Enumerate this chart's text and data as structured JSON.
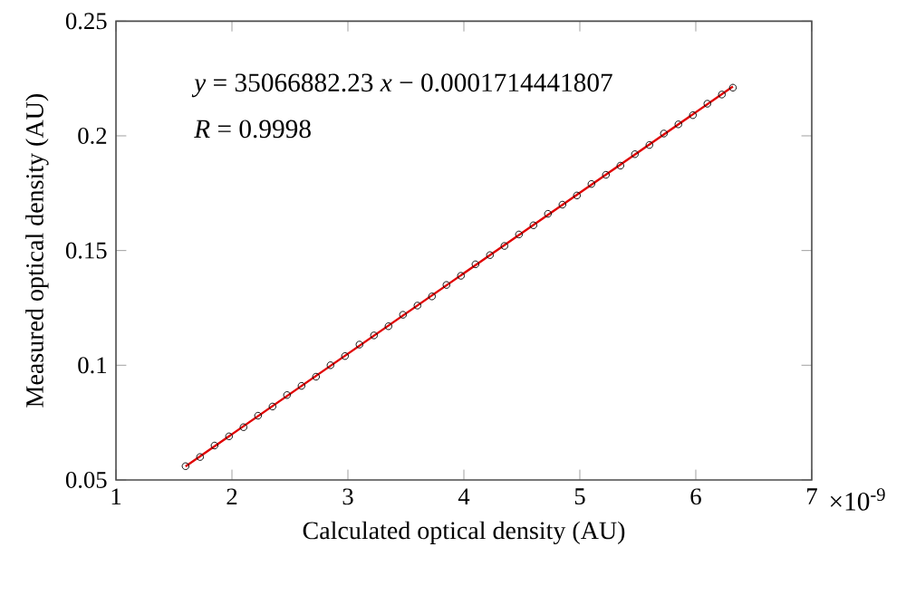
{
  "chart_data": {
    "type": "scatter",
    "xlabel": "Calculated optical density (AU)",
    "ylabel": "Measured optical density (AU)",
    "xlim": [
      1,
      7
    ],
    "ylim": [
      0.05,
      0.25
    ],
    "xticks": [
      1,
      2,
      3,
      4,
      5,
      6,
      7
    ],
    "yticks": [
      0.05,
      0.1,
      0.15,
      0.2,
      0.25
    ],
    "annotations": [
      "*y* = 35066882.23 *x* − 0.0001714441807",
      "*R* = 0.9998",
      "×10$^{-9}$"
    ],
    "series": [
      {
        "marker": "circle",
        "color": "#000000",
        "x": [
          1.6,
          1.725,
          1.85,
          1.975,
          2.1,
          2.225,
          2.35,
          2.475,
          2.6,
          2.725,
          2.85,
          2.975,
          3.1,
          3.225,
          3.35,
          3.475,
          3.6,
          3.725,
          3.85,
          3.975,
          4.1,
          4.225,
          4.35,
          4.475,
          4.6,
          4.725,
          4.85,
          4.975,
          5.1,
          5.225,
          5.35,
          5.475,
          5.6,
          5.725,
          5.85,
          5.975,
          6.1,
          6.225,
          6.32
        ],
        "values": [
          0.056,
          0.06,
          0.065,
          0.069,
          0.073,
          0.078,
          0.082,
          0.087,
          0.091,
          0.095,
          0.1,
          0.104,
          0.109,
          0.113,
          0.117,
          0.122,
          0.126,
          0.13,
          0.135,
          0.139,
          0.144,
          0.148,
          0.152,
          0.157,
          0.161,
          0.166,
          0.17,
          0.174,
          0.179,
          0.183,
          0.187,
          0.192,
          0.196,
          0.201,
          0.205,
          0.209,
          0.214,
          0.218,
          0.221
        ]
      },
      {
        "type": "line",
        "marker": "none",
        "color": "#e00000",
        "x": [
          1.6,
          6.32
        ],
        "values": [
          0.0559,
          0.2215
        ]
      }
    ]
  }
}
